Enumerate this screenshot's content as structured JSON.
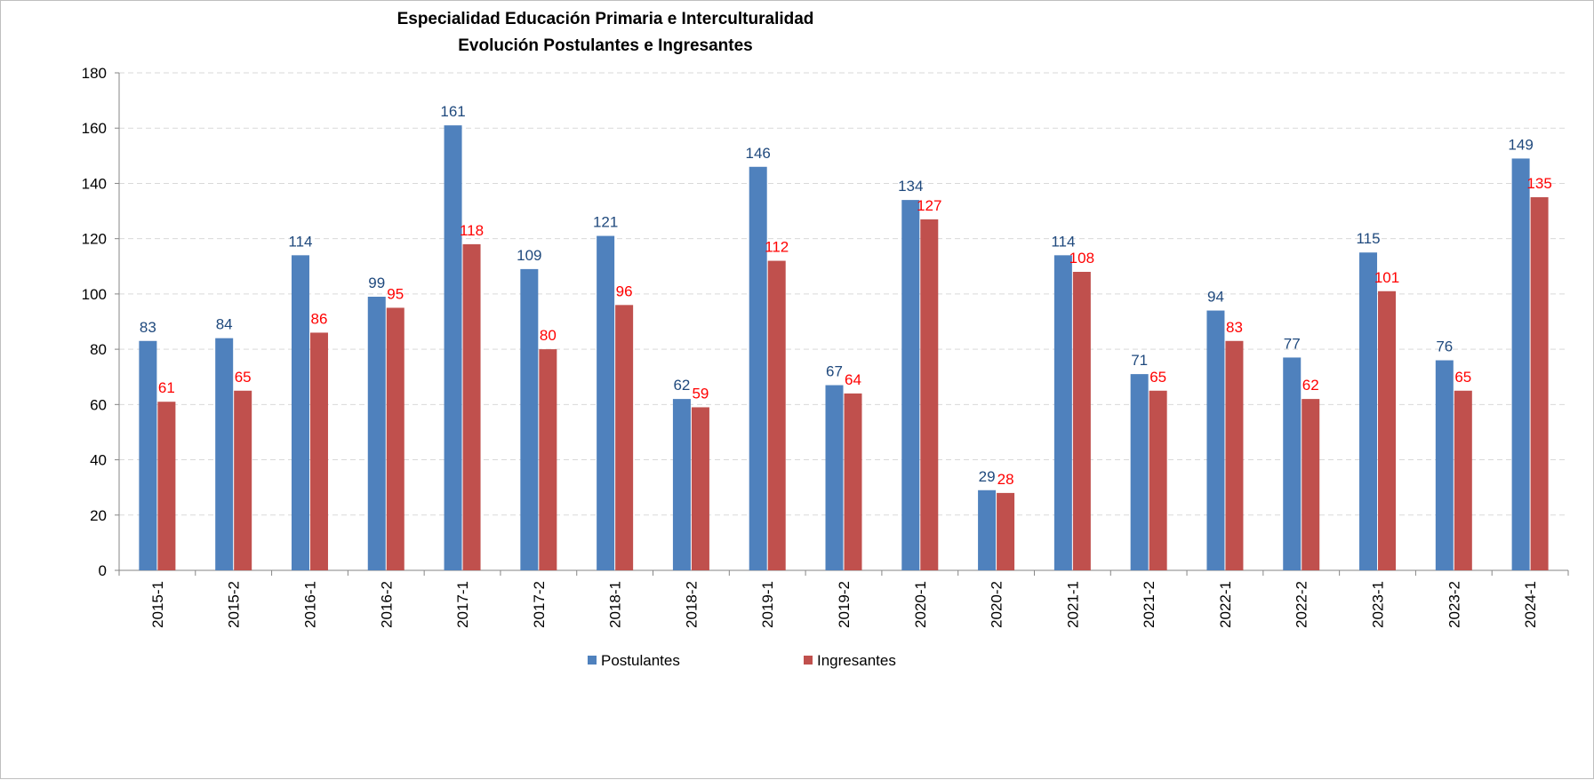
{
  "chart_data": {
    "type": "bar",
    "title": "Especialidad Educación Primaria e Interculturalidad",
    "subtitle": "Evolución Postulantes e Ingresantes",
    "categories": [
      "2015-1",
      "2015-2",
      "2016-1",
      "2016-2",
      "2017-1",
      "2017-2",
      "2018-1",
      "2018-2",
      "2019-1",
      "2019-2",
      "2020-1",
      "2020-2",
      "2021-1",
      "2021-2",
      "2022-1",
      "2022-2",
      "2023-1",
      "2023-2",
      "2024-1"
    ],
    "series": [
      {
        "name": "Postulantes",
        "color": "#4F81BD",
        "label_color": "#1F497D",
        "values": [
          83,
          84,
          114,
          99,
          161,
          109,
          121,
          62,
          146,
          67,
          134,
          29,
          114,
          71,
          94,
          77,
          115,
          76,
          149
        ]
      },
      {
        "name": "Ingresantes",
        "color": "#C0504D",
        "label_color": "#FF0000",
        "values": [
          61,
          65,
          86,
          95,
          118,
          80,
          96,
          59,
          112,
          64,
          127,
          28,
          108,
          65,
          83,
          62,
          101,
          65,
          135
        ]
      }
    ],
    "ylim": [
      0,
      180
    ],
    "yticks": [
      0,
      20,
      40,
      60,
      80,
      100,
      120,
      140,
      160,
      180
    ],
    "grid": true,
    "legend_position": "bottom",
    "xlabel": "",
    "ylabel": ""
  }
}
